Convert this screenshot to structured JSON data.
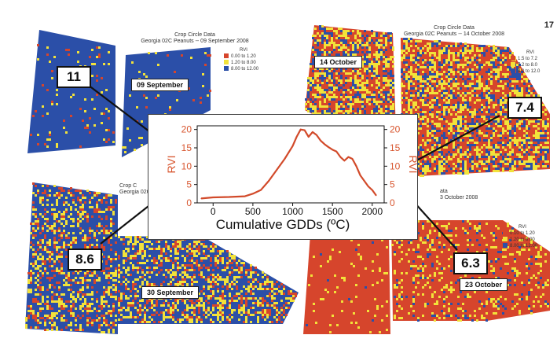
{
  "maps": {
    "top_left": {
      "title_line1": "Crop Circle Data",
      "title_line2": "Georgia 02C Peanuts -- 09 September 2008",
      "legend_title": "RVI",
      "legend": [
        "0.00  to  1.20",
        "1.20  to  8.00",
        "8.00  to  12.00"
      ],
      "date": "09 September"
    },
    "top_right": {
      "title_line1": "Crop Circle Data",
      "title_line2": "Georgia 02C Peanuts -- 14 October 2008",
      "legend_title": "RVI",
      "legend": [
        "1.5  to  7.2",
        "7.2  to  8.0",
        "8.0  to  12.0"
      ],
      "date": "14 October"
    },
    "bottom_left": {
      "title_line1": "Crop C",
      "title_line2": "Georgia 02C Peanuts",
      "date": "30 September"
    },
    "bottom_right": {
      "title_line1": "ata",
      "title_line2": "3 October 2008",
      "legend_title": "RVI",
      "legend": [
        "0.10  to  1.20",
        "1.20  to  8.00",
        "8.00  to  12.00"
      ],
      "date": "23 October"
    }
  },
  "callouts": {
    "top_left": "11",
    "top_right": "7.4",
    "bottom_left": "8.6",
    "bottom_right": "6.3"
  },
  "page_number": "17",
  "colors": {
    "blue": "#2b4fa8",
    "red": "#d6452c",
    "yellow": "#f2e23a",
    "curve": "#d24a2a",
    "axis_label": "#d8562f"
  },
  "chart_data": {
    "type": "line",
    "xlabel": "Cumulative GDDs (ºC)",
    "ylabel": "RVI",
    "ylabel_right": "RVI",
    "xlim": [
      -200,
      2150
    ],
    "ylim": [
      0,
      21
    ],
    "x_ticks": [
      0,
      500,
      1000,
      1500,
      2000
    ],
    "y_ticks": [
      0,
      5,
      10,
      15,
      20
    ],
    "series": [
      {
        "x": [
          -150,
          0,
          200,
          400,
          500,
          600,
          700,
          800,
          900,
          1000,
          1050,
          1100,
          1150,
          1200,
          1250,
          1300,
          1350,
          1400,
          1450,
          1500,
          1550,
          1600,
          1650,
          1700,
          1750,
          1800,
          1850,
          1900,
          1950,
          2000,
          2050
        ],
        "y": [
          1.2,
          1.5,
          1.6,
          1.8,
          2.5,
          3.5,
          6.0,
          9.0,
          12.0,
          15.5,
          18.0,
          20.0,
          19.8,
          18.0,
          19.3,
          18.5,
          17.0,
          16.0,
          15.2,
          14.5,
          14.0,
          12.5,
          11.5,
          12.5,
          12.0,
          10.0,
          7.5,
          6.0,
          4.5,
          3.5,
          2.0
        ]
      }
    ]
  }
}
